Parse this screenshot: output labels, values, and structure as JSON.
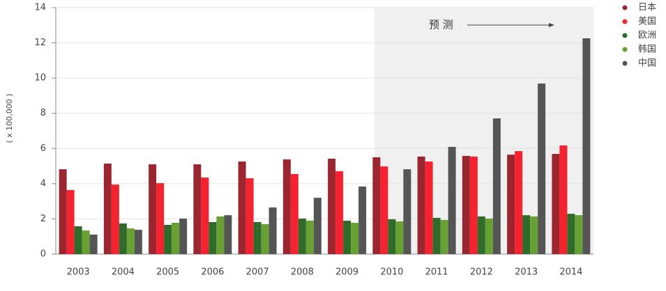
{
  "chart_data": {
    "type": "bar",
    "y_label": "( x 100,000 )",
    "annotation": "预  测",
    "categories": [
      "2003",
      "2004",
      "2005",
      "2006",
      "2007",
      "2008",
      "2009",
      "2010",
      "2011",
      "2012",
      "2013",
      "2014"
    ],
    "series": [
      {
        "name": "日本",
        "color": "#9b2630",
        "values": [
          4.82,
          5.14,
          5.1,
          5.1,
          5.26,
          5.38,
          5.42,
          5.5,
          5.54,
          5.58,
          5.65,
          5.69
        ]
      },
      {
        "name": "美国",
        "color": "#f5222f",
        "values": [
          3.64,
          3.95,
          4.03,
          4.35,
          4.31,
          4.55,
          4.71,
          4.98,
          5.26,
          5.54,
          5.85,
          6.17
        ]
      },
      {
        "name": "欧洲",
        "color": "#2f6b2a",
        "values": [
          1.58,
          1.74,
          1.66,
          1.82,
          1.82,
          2.02,
          1.9,
          1.98,
          2.06,
          2.14,
          2.21,
          2.29
        ]
      },
      {
        "name": "韩国",
        "color": "#68a034",
        "values": [
          1.34,
          1.46,
          1.78,
          2.14,
          1.7,
          1.9,
          1.78,
          1.86,
          1.94,
          2.02,
          2.14,
          2.21
        ]
      },
      {
        "name": "中国",
        "color": "#555555",
        "values": [
          1.11,
          1.38,
          2.02,
          2.21,
          2.65,
          3.2,
          3.84,
          4.82,
          6.09,
          7.71,
          9.69,
          12.26
        ]
      }
    ],
    "ylim": [
      0,
      14
    ],
    "yticks": [
      0,
      2,
      4,
      6,
      8,
      10,
      12,
      14
    ],
    "grid": true,
    "legend": "top-right"
  }
}
